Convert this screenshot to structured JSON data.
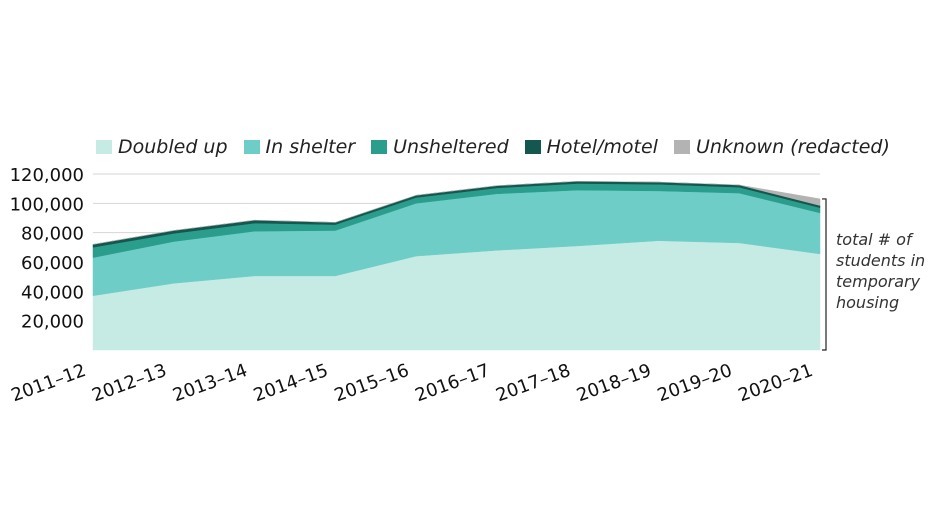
{
  "chart_data": {
    "type": "area",
    "stacked": true,
    "title": "",
    "xlabel": "",
    "ylabel": "",
    "categories": [
      "2011–12",
      "2012–13",
      "2013–14",
      "2014–15",
      "2015–16",
      "2016–17",
      "2017–18",
      "2018–19",
      "2019–20",
      "2020–21"
    ],
    "ylim": [
      0,
      120000
    ],
    "yticks": [
      {
        "value": 20000,
        "label": "20,000"
      },
      {
        "value": 40000,
        "label": "40,000"
      },
      {
        "value": 60000,
        "label": "60,000"
      },
      {
        "value": 80000,
        "label": "80,000"
      },
      {
        "value": 100000,
        "label": "100,000"
      },
      {
        "value": 120000,
        "label": "120,000"
      }
    ],
    "grid": true,
    "legend_position": "top",
    "series": [
      {
        "name": "Doubled up",
        "color": "#c6ebe4",
        "values": [
          37000,
          45500,
          50500,
          50500,
          64000,
          68000,
          71000,
          74500,
          73000,
          65500
        ]
      },
      {
        "name": "In shelter",
        "color": "#6fcdc8",
        "values": [
          26000,
          28500,
          30500,
          31000,
          36000,
          38500,
          38000,
          34000,
          34000,
          28000
        ]
      },
      {
        "name": "Unsheltered",
        "color": "#2a9d8c",
        "values": [
          7000,
          5500,
          5500,
          4000,
          4000,
          4000,
          4500,
          4500,
          4000,
          3500
        ]
      },
      {
        "name": "Hotel/motel",
        "color": "#14574f",
        "values": [
          2000,
          2000,
          2000,
          1500,
          1500,
          1500,
          1500,
          1500,
          1500,
          1500
        ]
      },
      {
        "name": "Unknown (redacted)",
        "color": "#b3b3b3",
        "values": [
          0,
          0,
          0,
          0,
          0,
          0,
          0,
          0,
          0,
          4500
        ]
      }
    ],
    "annotation": "total # of students in temporary housing"
  }
}
